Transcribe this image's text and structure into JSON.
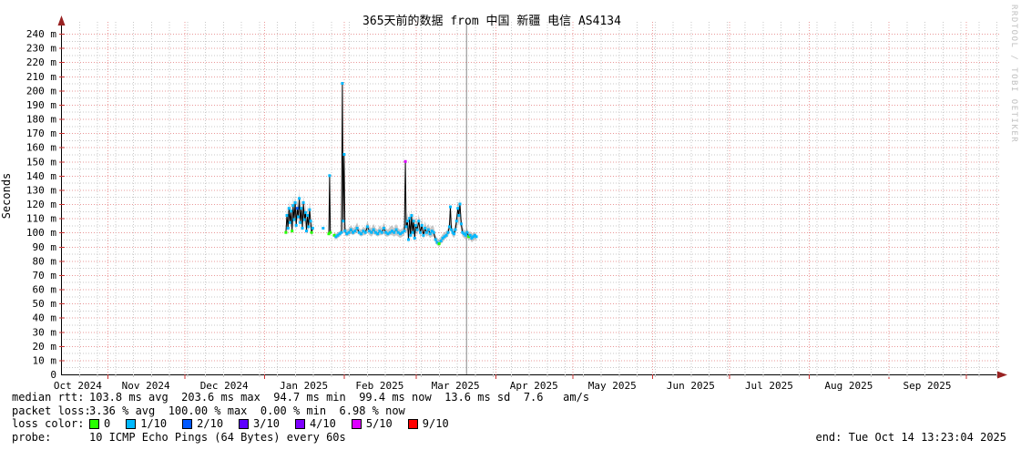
{
  "title": "365天前的数据 from 中国 新疆 电信 AS4134",
  "watermark": "RRDTOOL / TOBI OETIKER",
  "y_axis_label": "Seconds",
  "legend": {
    "median_rtt": {
      "label": "median rtt:",
      "value": "103.8 ms avg  203.6 ms max  94.7 ms min  99.4 ms now  13.6 ms sd  7.6   am/s"
    },
    "packet_loss": {
      "label": "packet loss:",
      "value": "3.36 % avg  100.00 % max  0.00 % min  6.98 % now"
    },
    "loss_color": {
      "label": "loss color:",
      "entries": [
        {
          "label": "0",
          "color": "#26ff00"
        },
        {
          "label": "1/10",
          "color": "#00b8ff"
        },
        {
          "label": "2/10",
          "color": "#0059ff"
        },
        {
          "label": "3/10",
          "color": "#5e00ff"
        },
        {
          "label": "4/10",
          "color": "#7e00ff"
        },
        {
          "label": "5/10",
          "color": "#dd00ff"
        },
        {
          "label": "9/10",
          "color": "#ff0000"
        }
      ]
    },
    "probe": {
      "label": "probe:",
      "value": "10 ICMP Echo Pings (64 Bytes) every 60s"
    },
    "end": "end: Tue Oct 14 13:23:04 2025"
  },
  "colors": {
    "grid_minor": "#c8c8c8",
    "grid_major": "#ea9899",
    "axis": "#000000",
    "arrow": "#992222",
    "tick_major": "#cc3333",
    "smoke": "#848484",
    "median": "#000000",
    "data_end_marker": "#888888",
    "watermark_gray": "#c0c0c0"
  },
  "chart_data": {
    "type": "line",
    "style": "smokeping-latency",
    "title": "365天前的数据 from 中国 新疆 电信 AS4134",
    "ylabel": "Seconds",
    "unit": "ms",
    "ylim": [
      0,
      240
    ],
    "y_tick_step": 10,
    "y_tick_suffix": " m",
    "x_span_days": 365,
    "x_range": "Oct 14 2024 - Oct 14 2025",
    "grid": true,
    "week_minor_step_days": 7,
    "month_boundaries_day": [
      18,
      48,
      79,
      110,
      138,
      169,
      199,
      230,
      260,
      291,
      322,
      352
    ],
    "month_labels": [
      {
        "label": "Oct 2024",
        "day": 6.5
      },
      {
        "label": "Nov 2024",
        "day": 33
      },
      {
        "label": "Dec 2024",
        "day": 63.5
      },
      {
        "label": "Jan 2025",
        "day": 94.5
      },
      {
        "label": "Feb 2025",
        "day": 124
      },
      {
        "label": "Mar 2025",
        "day": 153.5
      },
      {
        "label": "Apr 2025",
        "day": 184
      },
      {
        "label": "May 2025",
        "day": 214.5
      },
      {
        "label": "Jun 2025",
        "day": 245
      },
      {
        "label": "Jul 2025",
        "day": 275.5
      },
      {
        "label": "Aug 2025",
        "day": 306.5
      },
      {
        "label": "Sep 2025",
        "day": 337
      }
    ],
    "data_end_marker_day": 157.6,
    "stats": {
      "median_rtt_ms": {
        "avg": 103.8,
        "max": 203.6,
        "min": 94.7,
        "now": 99.4,
        "sd": 13.6,
        "am_s": 7.6
      },
      "packet_loss_pct": {
        "avg": 3.36,
        "max": 100.0,
        "min": 0.0,
        "now": 6.98
      }
    },
    "loss_dot_palette": {
      "0": "#26ff00",
      "1": "#00b8ff",
      "2": "#0059ff",
      "3": "#5e00ff",
      "4": "#7e00ff",
      "5": "#dd00ff",
      "9": "#ff0000"
    },
    "series": [
      {
        "name": "median rtt",
        "point_format": [
          "day_offset",
          "median_ms",
          "smoke_low_ms",
          "smoke_high_ms",
          "loss_bucket"
        ],
        "points": [
          [
            87.5,
            100,
            97,
            104,
            0
          ],
          [
            87.9,
            112,
            105,
            118,
            1
          ],
          [
            88.3,
            103,
            99,
            108,
            1
          ],
          [
            88.7,
            117,
            110,
            123,
            1
          ],
          [
            89.1,
            107,
            102,
            113,
            1
          ],
          [
            89.5,
            115,
            108,
            122,
            1
          ],
          [
            89.9,
            101,
            98,
            106,
            0
          ],
          [
            90.3,
            119,
            112,
            126,
            1
          ],
          [
            90.7,
            109,
            104,
            115,
            1
          ],
          [
            91.1,
            121,
            114,
            128,
            1
          ],
          [
            91.5,
            105,
            101,
            111,
            1
          ],
          [
            91.9,
            117,
            110,
            124,
            2
          ],
          [
            92.3,
            111,
            106,
            118,
            1
          ],
          [
            92.7,
            124,
            117,
            130,
            1
          ],
          [
            93.1,
            107,
            103,
            114,
            1
          ],
          [
            93.5,
            117,
            111,
            124,
            1
          ],
          [
            93.9,
            103,
            100,
            109,
            1
          ],
          [
            94.3,
            121,
            113,
            127,
            1
          ],
          [
            94.7,
            109,
            105,
            116,
            1
          ],
          [
            95.1,
            114,
            108,
            121,
            1
          ],
          [
            95.5,
            101,
            98,
            107,
            1
          ],
          [
            95.9,
            112,
            106,
            119,
            1
          ],
          [
            96.3,
            104,
            100,
            110,
            1
          ],
          [
            96.7,
            116,
            108,
            123,
            1
          ],
          [
            97.1,
            108,
            103,
            114,
            1
          ],
          [
            97.5,
            100,
            97,
            105,
            0
          ],
          [
            97.9,
            103,
            99,
            108,
            1
          ],
          null,
          [
            102,
            103,
            101,
            106,
            1
          ],
          null,
          [
            104.2,
            99,
            97,
            101,
            0
          ],
          [
            104.5,
            140,
            100,
            143,
            1
          ],
          [
            104.8,
            100,
            98,
            103,
            0
          ],
          null,
          [
            106.3,
            98,
            96,
            100,
            0
          ],
          [
            107,
            97,
            95,
            99,
            1
          ],
          [
            107.7,
            98,
            96,
            100,
            1
          ],
          [
            108.4,
            99,
            97,
            101,
            1
          ],
          [
            109.1,
            100,
            98,
            102,
            1
          ],
          [
            109.45,
            205,
            102,
            208,
            1
          ],
          [
            109.8,
            108,
            100,
            112,
            1
          ],
          [
            110.15,
            155,
            102,
            158,
            1
          ],
          [
            110.5,
            101,
            98,
            104,
            1
          ],
          [
            111.2,
            99,
            97,
            102,
            1
          ],
          [
            112,
            100,
            98,
            103,
            1
          ],
          [
            112.8,
            102,
            99,
            105,
            1
          ],
          [
            113.6,
            100,
            98,
            103,
            1
          ],
          [
            114.4,
            101,
            99,
            104,
            1
          ],
          [
            115.2,
            103,
            100,
            107,
            1
          ],
          [
            116,
            100,
            98,
            103,
            1
          ],
          [
            116.8,
            99,
            97,
            102,
            1
          ],
          [
            117.6,
            101,
            98,
            104,
            1
          ],
          [
            118.4,
            100,
            98,
            103,
            1
          ],
          [
            119.2,
            104,
            100,
            108,
            1
          ],
          [
            120,
            101,
            98,
            104,
            1
          ],
          [
            120.8,
            100,
            97,
            103,
            1
          ],
          [
            121.6,
            102,
            99,
            106,
            1
          ],
          [
            122.4,
            100,
            98,
            103,
            1
          ],
          [
            123.2,
            99,
            97,
            102,
            1
          ],
          [
            124,
            101,
            98,
            105,
            1
          ],
          [
            124.8,
            100,
            98,
            103,
            1
          ],
          [
            125.6,
            103,
            99,
            107,
            1
          ],
          [
            126.4,
            100,
            97,
            103,
            1
          ],
          [
            127.2,
            99,
            97,
            102,
            1
          ],
          [
            128,
            100,
            98,
            104,
            1
          ],
          [
            128.8,
            101,
            98,
            105,
            1
          ],
          [
            129.6,
            100,
            97,
            103,
            1
          ],
          [
            130.4,
            102,
            98,
            106,
            1
          ],
          [
            131.2,
            100,
            97,
            103,
            1
          ],
          [
            132,
            99,
            96,
            102,
            1
          ],
          [
            132.8,
            100,
            97,
            103,
            1
          ],
          [
            133.6,
            101,
            98,
            104,
            1
          ],
          [
            134,
            150,
            104,
            153,
            5
          ],
          [
            134.3,
            104,
            99,
            108,
            1
          ],
          [
            134.8,
            108,
            102,
            114,
            1
          ],
          [
            135.2,
            95,
            92,
            99,
            1
          ],
          [
            135.6,
            110,
            103,
            116,
            1
          ],
          [
            136,
            98,
            94,
            102,
            1
          ],
          [
            136.4,
            112,
            105,
            118,
            1
          ],
          [
            136.8,
            100,
            96,
            105,
            1
          ],
          [
            137.2,
            108,
            102,
            114,
            1
          ],
          [
            137.6,
            96,
            92,
            100,
            1
          ],
          [
            138,
            105,
            100,
            111,
            1
          ],
          [
            138.6,
            102,
            98,
            107,
            1
          ],
          [
            139.2,
            108,
            102,
            113,
            1
          ],
          [
            139.8,
            100,
            96,
            104,
            1
          ],
          [
            140.4,
            105,
            100,
            110,
            1
          ],
          [
            141,
            98,
            95,
            102,
            1
          ],
          [
            141.6,
            103,
            99,
            108,
            1
          ],
          [
            142.2,
            100,
            97,
            104,
            1
          ],
          [
            142.9,
            102,
            98,
            106,
            1
          ],
          [
            143.6,
            99,
            96,
            103,
            1
          ],
          [
            144.3,
            101,
            97,
            105,
            1
          ],
          [
            145,
            100,
            97,
            104,
            1
          ],
          [
            145.7,
            95,
            92,
            98,
            1
          ],
          [
            146.4,
            93,
            91,
            96,
            1
          ],
          [
            147.1,
            92,
            90,
            95,
            0
          ],
          [
            147.8,
            94,
            92,
            97,
            1
          ],
          [
            148.5,
            96,
            93,
            99,
            1
          ],
          [
            149.2,
            97,
            95,
            100,
            1
          ],
          [
            149.9,
            98,
            96,
            101,
            1
          ],
          [
            150.6,
            100,
            97,
            103,
            1
          ],
          [
            151.1,
            104,
            100,
            109,
            1
          ],
          [
            151.5,
            118,
            104,
            121,
            1
          ],
          [
            151.9,
            102,
            99,
            106,
            1
          ],
          [
            152.4,
            100,
            97,
            103,
            1
          ],
          [
            152.9,
            99,
            96,
            102,
            1
          ],
          [
            153.4,
            102,
            98,
            107,
            1
          ],
          [
            153.9,
            108,
            102,
            114,
            1
          ],
          [
            154.4,
            117,
            108,
            122,
            1
          ],
          [
            154.8,
            112,
            105,
            118,
            1
          ],
          [
            155.2,
            120,
            110,
            124,
            1
          ],
          [
            155.7,
            106,
            100,
            112,
            1
          ],
          [
            156.2,
            100,
            97,
            104,
            1
          ],
          [
            156.8,
            99,
            96,
            102,
            1
          ],
          [
            157.4,
            98,
            95,
            101,
            1
          ],
          [
            158,
            100,
            97,
            103,
            1
          ],
          [
            158.6,
            97,
            94,
            100,
            0
          ],
          [
            159.2,
            98,
            95,
            101,
            1
          ],
          [
            159.8,
            96,
            93,
            99,
            1
          ],
          [
            160.4,
            97,
            94,
            100,
            1
          ],
          [
            161,
            98,
            95,
            100,
            1
          ],
          [
            161.6,
            97,
            94,
            99,
            1
          ]
        ]
      }
    ]
  }
}
